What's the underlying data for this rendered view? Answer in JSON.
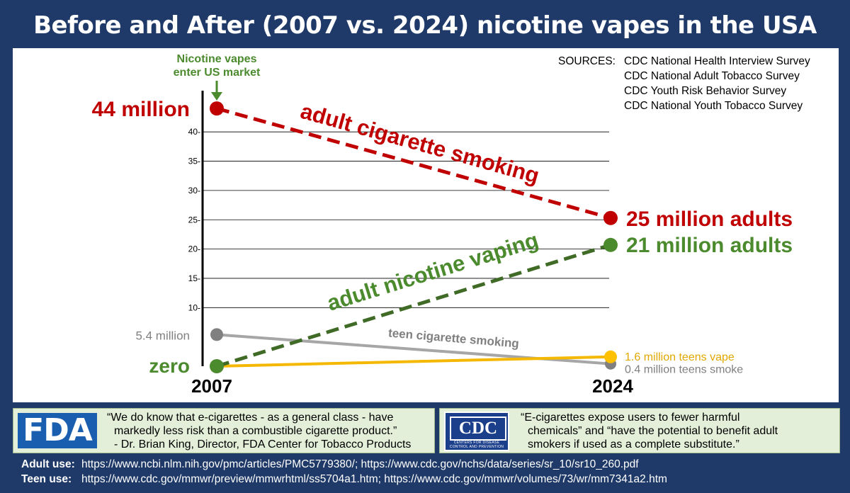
{
  "title": "Before and After (2007 vs. 2024) nicotine vapes in the USA",
  "sources": {
    "label": "SOURCES:",
    "items": [
      "CDC National Health Interview Survey",
      "CDC National Adult Tobacco Survey",
      "CDC Youth Risk Behavior Survey",
      "CDC National Youth Tobacco Survey"
    ]
  },
  "chart_data": {
    "type": "line",
    "categories": [
      "2007",
      "2024"
    ],
    "ylim": [
      0,
      44
    ],
    "yticks": [
      10,
      15,
      20,
      25,
      30,
      35,
      40
    ],
    "ytick_labels": [
      "10-",
      "15-",
      "20-",
      "25-",
      "30-",
      "35-",
      "40-"
    ],
    "grid": true,
    "series": [
      {
        "name": "adult cigarette smoking",
        "values": [
          44,
          25.3
        ],
        "color": "#c00000",
        "style": "dashed",
        "start_label": "44 million",
        "end_label": "25 million adults"
      },
      {
        "name": "adult nicotine vaping",
        "values": [
          0,
          20.7
        ],
        "color": "#3f6b26",
        "style": "dashed",
        "start_label": "zero",
        "end_label": "21 million adults"
      },
      {
        "name": "teen cigarette smoking",
        "values": [
          5.4,
          0.4
        ],
        "color": "#a6a6a6",
        "style": "solid",
        "start_label": "5.4 million",
        "end_label": "0.4 million teens smoke"
      },
      {
        "values": [
          0,
          1.6
        ],
        "color": "#f5b800",
        "style": "solid",
        "start_label": "",
        "end_label": "1.6 million teens vape"
      }
    ],
    "annotation": {
      "lines": [
        "Nicotine vapes",
        "enter US market"
      ],
      "color": "#4c8a2e"
    },
    "colors": {
      "red": "#c00000",
      "green": "#4c8a2e",
      "gray": "#808080",
      "yellow": "#e0a800"
    }
  },
  "quotes": {
    "fda": {
      "logo": "FDA",
      "lines": [
        "“We do know that e-cigarettes - as a general class - have",
        "markedly less risk than a combustible cigarette product.”",
        "- Dr. Brian King, Director, FDA Center for Tobacco Products"
      ]
    },
    "cdc": {
      "logo": "CDC",
      "logo_sub": "CENTERS FOR DISEASE CONTROL AND PREVENTION",
      "lines": [
        "“E-cigarettes expose users to fewer harmful",
        "chemicals” and “have the potential to benefit adult",
        "smokers if used as a complete substitute.”"
      ]
    }
  },
  "links": {
    "adult_label": "Adult use:",
    "adult": "https://www.ncbi.nlm.nih.gov/pmc/articles/PMC5779380/; https://www.cdc.gov/nchs/data/series/sr_10/sr10_260.pdf",
    "teen_label": "Teen use:",
    "teen": "https://www.cdc.gov/mmwr/preview/mmwrhtml/ss5704a1.htm; https://www.cdc.gov/mmwr/volumes/73/wr/mm7341a2.htm"
  }
}
